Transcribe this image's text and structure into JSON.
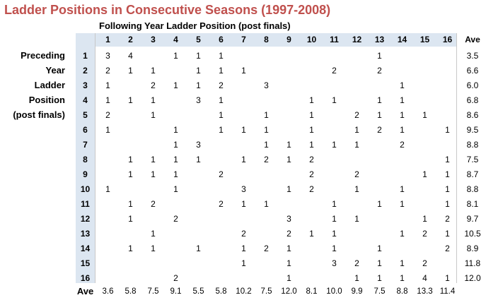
{
  "chart_data": {
    "type": "table",
    "title": "Ladder Positions in Consecutive Seasons (1997-2008)",
    "xlabel": "Following Year Ladder Position (post finals)",
    "ylabel_lines": [
      "Preceding",
      "Year",
      "Ladder",
      "Position",
      "(post finals)"
    ],
    "columns": [
      "1",
      "2",
      "3",
      "4",
      "5",
      "6",
      "7",
      "8",
      "9",
      "10",
      "11",
      "12",
      "13",
      "14",
      "15",
      "16"
    ],
    "rows": [
      "1",
      "2",
      "3",
      "4",
      "5",
      "6",
      "7",
      "8",
      "9",
      "10",
      "11",
      "12",
      "13",
      "14",
      "15",
      "16"
    ],
    "ave_label": "Ave",
    "values": [
      [
        3,
        4,
        null,
        1,
        1,
        1,
        null,
        null,
        null,
        null,
        null,
        null,
        1,
        null,
        null,
        null
      ],
      [
        2,
        1,
        1,
        null,
        1,
        1,
        1,
        null,
        null,
        null,
        2,
        null,
        2,
        null,
        null,
        null
      ],
      [
        1,
        null,
        2,
        1,
        1,
        2,
        null,
        3,
        null,
        null,
        null,
        null,
        null,
        1,
        null,
        null
      ],
      [
        1,
        1,
        1,
        null,
        3,
        1,
        null,
        null,
        null,
        1,
        1,
        null,
        1,
        1,
        null,
        null
      ],
      [
        2,
        null,
        1,
        null,
        null,
        1,
        null,
        1,
        null,
        1,
        null,
        2,
        1,
        1,
        1,
        null
      ],
      [
        1,
        null,
        null,
        1,
        null,
        1,
        1,
        1,
        null,
        1,
        null,
        1,
        2,
        1,
        null,
        1
      ],
      [
        null,
        null,
        null,
        1,
        3,
        null,
        null,
        1,
        1,
        1,
        1,
        1,
        null,
        2,
        null,
        null
      ],
      [
        null,
        1,
        1,
        1,
        1,
        null,
        1,
        2,
        1,
        2,
        null,
        null,
        null,
        null,
        null,
        1
      ],
      [
        null,
        1,
        1,
        1,
        null,
        2,
        null,
        null,
        null,
        2,
        null,
        2,
        null,
        null,
        1,
        1
      ],
      [
        1,
        null,
        null,
        1,
        null,
        null,
        3,
        null,
        1,
        2,
        null,
        1,
        null,
        1,
        null,
        1
      ],
      [
        null,
        1,
        2,
        null,
        null,
        2,
        1,
        1,
        null,
        null,
        1,
        null,
        1,
        1,
        null,
        1
      ],
      [
        null,
        1,
        null,
        2,
        null,
        null,
        null,
        null,
        3,
        null,
        1,
        1,
        null,
        null,
        1,
        2
      ],
      [
        null,
        null,
        1,
        null,
        null,
        null,
        2,
        null,
        2,
        1,
        1,
        null,
        null,
        1,
        2,
        1
      ],
      [
        null,
        1,
        1,
        null,
        1,
        null,
        1,
        2,
        1,
        null,
        1,
        null,
        1,
        null,
        null,
        2
      ],
      [
        null,
        null,
        null,
        null,
        null,
        null,
        1,
        null,
        1,
        null,
        3,
        2,
        1,
        1,
        2,
        null
      ],
      [
        null,
        null,
        null,
        2,
        null,
        null,
        null,
        null,
        1,
        null,
        null,
        1,
        1,
        1,
        4,
        1
      ]
    ],
    "row_ave": [
      "3.5",
      "6.6",
      "6.0",
      "6.8",
      "8.6",
      "9.5",
      "8.8",
      "7.5",
      "8.7",
      "8.8",
      "8.1",
      "9.7",
      "10.5",
      "8.9",
      "11.8",
      "12.0"
    ],
    "col_ave": [
      "3.6",
      "5.8",
      "7.5",
      "9.1",
      "5.5",
      "5.8",
      "10.2",
      "7.5",
      "12.0",
      "8.1",
      "10.0",
      "9.9",
      "7.5",
      "8.8",
      "13.3",
      "11.4"
    ]
  }
}
